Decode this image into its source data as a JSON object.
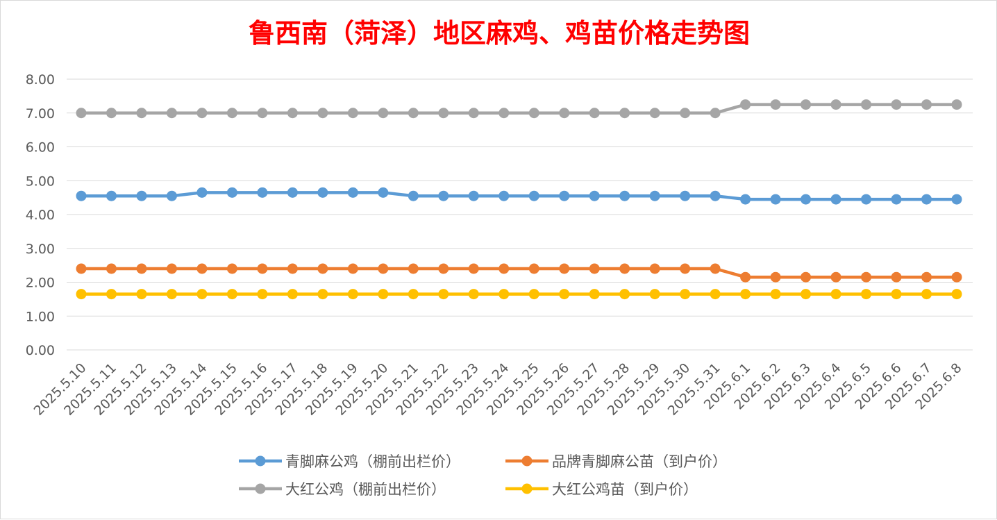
{
  "chart_data": {
    "type": "line",
    "title": "鲁西南（菏泽）地区麻鸡、鸡苗价格走势图",
    "xlabel": "",
    "ylabel": "",
    "ylim": [
      0,
      8
    ],
    "y_ticks": [
      "0.00",
      "1.00",
      "2.00",
      "3.00",
      "4.00",
      "5.00",
      "6.00",
      "7.00",
      "8.00"
    ],
    "grid": true,
    "legend_position": "bottom",
    "categories": [
      "2025.5.10",
      "2025.5.11",
      "2025.5.12",
      "2025.5.13",
      "2025.5.14",
      "2025.5.15",
      "2025.5.16",
      "2025.5.17",
      "2025.5.18",
      "2025.5.19",
      "2025.5.20",
      "2025.5.21",
      "2025.5.22",
      "2025.5.23",
      "2025.5.24",
      "2025.5.25",
      "2025.5.26",
      "2025.5.27",
      "2025.5.28",
      "2025.5.29",
      "2025.5.30",
      "2025.5.31",
      "2025.6.1",
      "2025.6.2",
      "2025.6.3",
      "2025.6.4",
      "2025.6.5",
      "2025.6.6",
      "2025.6.7",
      "2025.6.8"
    ],
    "series": [
      {
        "name": "青脚麻公鸡（棚前出栏价）",
        "color": "#5b9bd5",
        "values": [
          4.55,
          4.55,
          4.55,
          4.55,
          4.65,
          4.65,
          4.65,
          4.65,
          4.65,
          4.65,
          4.65,
          4.55,
          4.55,
          4.55,
          4.55,
          4.55,
          4.55,
          4.55,
          4.55,
          4.55,
          4.55,
          4.55,
          4.45,
          4.45,
          4.45,
          4.45,
          4.45,
          4.45,
          4.45,
          4.45
        ]
      },
      {
        "name": "品牌青脚麻公苗（到户价）",
        "color": "#ed7d31",
        "values": [
          2.4,
          2.4,
          2.4,
          2.4,
          2.4,
          2.4,
          2.4,
          2.4,
          2.4,
          2.4,
          2.4,
          2.4,
          2.4,
          2.4,
          2.4,
          2.4,
          2.4,
          2.4,
          2.4,
          2.4,
          2.4,
          2.4,
          2.15,
          2.15,
          2.15,
          2.15,
          2.15,
          2.15,
          2.15,
          2.15
        ]
      },
      {
        "name": "大红公鸡（棚前出栏价）",
        "color": "#a5a5a5",
        "values": [
          7.0,
          7.0,
          7.0,
          7.0,
          7.0,
          7.0,
          7.0,
          7.0,
          7.0,
          7.0,
          7.0,
          7.0,
          7.0,
          7.0,
          7.0,
          7.0,
          7.0,
          7.0,
          7.0,
          7.0,
          7.0,
          7.0,
          7.25,
          7.25,
          7.25,
          7.25,
          7.25,
          7.25,
          7.25,
          7.25
        ]
      },
      {
        "name": "大红公鸡苗（到户价）",
        "color": "#ffc000",
        "values": [
          1.65,
          1.65,
          1.65,
          1.65,
          1.65,
          1.65,
          1.65,
          1.65,
          1.65,
          1.65,
          1.65,
          1.65,
          1.65,
          1.65,
          1.65,
          1.65,
          1.65,
          1.65,
          1.65,
          1.65,
          1.65,
          1.65,
          1.65,
          1.65,
          1.65,
          1.65,
          1.65,
          1.65,
          1.65,
          1.65
        ]
      }
    ]
  }
}
